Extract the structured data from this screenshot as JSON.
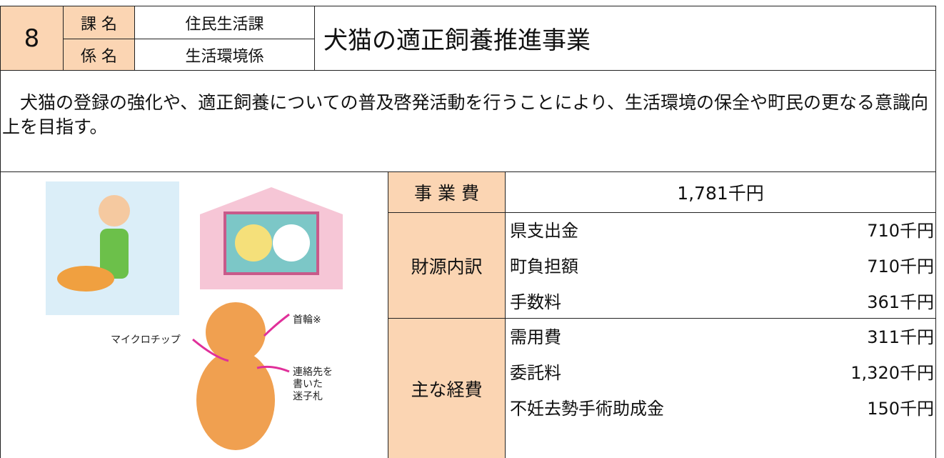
{
  "header": {
    "number": "8",
    "section_label": "課 名",
    "section": "住民生活課",
    "unit_label": "係 名",
    "unit": "生活環境係",
    "title": "犬猫の適正飼養推進事業"
  },
  "description": "　犬猫の登録の強化や、適正飼養についての普及啓発活動を行うことにより、生活環境の保全や町民の更なる意識向上を目指す。",
  "illustration": {
    "microchip": "マイクロチップ",
    "collar": "首輪※",
    "tag": [
      "連絡先を",
      "書いた",
      "迷子札"
    ]
  },
  "budget": {
    "label": "事 業 費",
    "value": "1,781千円"
  },
  "funding": {
    "label": "財源内訳",
    "items": [
      {
        "name": "県支出金",
        "amount": "710千円"
      },
      {
        "name": "町負担額",
        "amount": "710千円"
      },
      {
        "name": "手数料",
        "amount": "361千円"
      }
    ]
  },
  "expenses": {
    "label": "主な経費",
    "items": [
      {
        "name": "需用費",
        "amount": "311千円"
      },
      {
        "name": "委託料",
        "amount": "1,320千円"
      },
      {
        "name": "不妊去勢手術助成金",
        "amount": "150千円"
      }
    ]
  }
}
